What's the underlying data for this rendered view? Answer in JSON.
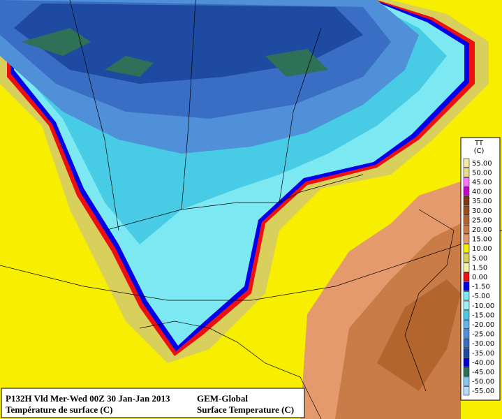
{
  "caption": {
    "line1_left": "P132H Vld Mer-Wed 00Z 30 Jan-Jan 2013",
    "line2_left": "Température de surface (C)",
    "line1_right": "GEM-Global",
    "line2_right": "Surface Temperature (C)"
  },
  "legend": {
    "title": "TT",
    "unit": "(C)",
    "entries": [
      {
        "label": "55.00",
        "color": "#f2eaa2"
      },
      {
        "label": "50.00",
        "color": "#e6de8a"
      },
      {
        "label": "45.00",
        "color": "#ff70ff"
      },
      {
        "label": "40.00",
        "color": "#c800c8"
      },
      {
        "label": "35.00",
        "color": "#7a3a14"
      },
      {
        "label": "30.00",
        "color": "#97501f"
      },
      {
        "label": "25.00",
        "color": "#b3652d"
      },
      {
        "label": "20.00",
        "color": "#c97c48"
      },
      {
        "label": "15.00",
        "color": "#e49a6c"
      },
      {
        "label": "10.00",
        "color": "#f7ee00"
      },
      {
        "label": "5.00",
        "color": "#d9cf5c"
      },
      {
        "label": "1.50",
        "color": "#f5f0a8"
      },
      {
        "label": "0.00",
        "color": "#ee1010"
      },
      {
        "label": "-1.50",
        "color": "#0000ee"
      },
      {
        "label": "-5.00",
        "color": "#7ce8f2"
      },
      {
        "label": "-10.00",
        "color": "#9cf0f8"
      },
      {
        "label": "-15.00",
        "color": "#48cce6"
      },
      {
        "label": "-20.00",
        "color": "#64b4ee"
      },
      {
        "label": "-25.00",
        "color": "#5090d8"
      },
      {
        "label": "-30.00",
        "color": "#3a6ec4"
      },
      {
        "label": "-35.00",
        "color": "#1e4aa2"
      },
      {
        "label": "-40.00",
        "color": "#0000d0"
      },
      {
        "label": "-45.00",
        "color": "#2e7058"
      },
      {
        "label": "-50.00",
        "color": "#88c8f0"
      },
      {
        "label": "-55.00",
        "color": "#b4dcf8"
      }
    ]
  }
}
